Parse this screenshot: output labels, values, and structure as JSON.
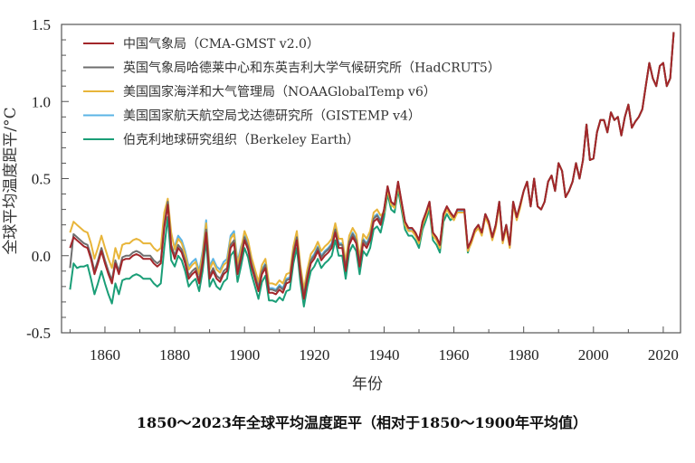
{
  "chart_data": {
    "type": "line",
    "title": "1850～2023年全球平均温度距平（相对于1850～1900年平均值）",
    "xlabel": "年份",
    "ylabel": "全球平均温度距平/°C",
    "xlim": [
      1850,
      2023
    ],
    "ylim": [
      -0.5,
      1.5
    ],
    "xticks": [
      "1860",
      "1880",
      "1900",
      "1920",
      "1940",
      "1960",
      "1980",
      "2000",
      "2020"
    ],
    "yticks": [
      "-0.5",
      "0.0",
      "0.5",
      "1.0",
      "1.5"
    ],
    "grid": false,
    "legend_position": "top-left",
    "x_start": 1850,
    "series": [
      {
        "name": "中国气象局（CMA-GMST v2.0）",
        "color": "#a3262a",
        "values": [
          0.05,
          0.12,
          0.1,
          0.08,
          0.06,
          0.05,
          -0.02,
          -0.12,
          -0.05,
          0.03,
          -0.05,
          -0.12,
          -0.18,
          -0.05,
          -0.12,
          -0.03,
          -0.02,
          -0.02,
          0.0,
          0.01,
          0.0,
          -0.02,
          -0.02,
          -0.02,
          -0.05,
          -0.07,
          -0.05,
          0.18,
          0.33,
          0.05,
          -0.02,
          0.05,
          0.02,
          -0.05,
          -0.15,
          -0.12,
          -0.1,
          -0.18,
          -0.05,
          0.15,
          -0.15,
          -0.1,
          -0.15,
          -0.17,
          -0.12,
          -0.1,
          0.05,
          0.08,
          -0.12,
          -0.02,
          0.1,
          0.04,
          -0.07,
          -0.15,
          -0.23,
          -0.12,
          -0.08,
          -0.24,
          -0.24,
          -0.25,
          -0.22,
          -0.24,
          -0.18,
          -0.17,
          0.0,
          0.1,
          -0.12,
          -0.28,
          -0.15,
          -0.05,
          -0.02,
          0.03,
          -0.03,
          0.0,
          0.02,
          0.05,
          0.15,
          0.05,
          0.05,
          -0.1,
          0.07,
          0.12,
          0.08,
          -0.07,
          0.08,
          0.05,
          0.1,
          0.22,
          0.24,
          0.2,
          0.3,
          0.45,
          0.35,
          0.33,
          0.48,
          0.35,
          0.22,
          0.18,
          0.18,
          0.15,
          0.1,
          0.22,
          0.28,
          0.35,
          0.15,
          0.12,
          0.07,
          0.27,
          0.32,
          0.28,
          0.25,
          0.3,
          0.3,
          0.3,
          0.05,
          0.1,
          0.17,
          0.2,
          0.15,
          0.27,
          0.22,
          0.12,
          0.2,
          0.35,
          0.1,
          0.2,
          0.07,
          0.35,
          0.25,
          0.33,
          0.42,
          0.48,
          0.32,
          0.5,
          0.32,
          0.3,
          0.35,
          0.48,
          0.52,
          0.42,
          0.6,
          0.55,
          0.38,
          0.42,
          0.48,
          0.6,
          0.5,
          0.62,
          0.85,
          0.62,
          0.63,
          0.8,
          0.88,
          0.88,
          0.8,
          0.93,
          0.88,
          0.9,
          0.78,
          0.9,
          0.98,
          0.83,
          0.87,
          0.9,
          0.95,
          1.1,
          1.25,
          1.15,
          1.1,
          1.23,
          1.25,
          1.1,
          1.15,
          1.45
        ]
      },
      {
        "name": "英国气象局哈德莱中心和东英吉利大学气候研究所（HadCRUT5）",
        "color": "#6e6e6e",
        "values": [
          -0.08,
          0.14,
          0.12,
          0.1,
          0.08,
          0.07,
          0.0,
          -0.1,
          -0.03,
          0.05,
          -0.03,
          -0.1,
          -0.16,
          -0.03,
          -0.1,
          -0.01,
          0.0,
          0.0,
          0.02,
          0.03,
          0.02,
          0.0,
          0.0,
          0.0,
          -0.03,
          -0.05,
          -0.03,
          0.2,
          0.35,
          0.07,
          0.0,
          0.07,
          0.04,
          -0.03,
          -0.13,
          -0.1,
          -0.08,
          -0.16,
          -0.03,
          0.17,
          -0.13,
          -0.08,
          -0.13,
          -0.15,
          -0.1,
          -0.08,
          0.07,
          0.1,
          -0.1,
          0.0,
          0.12,
          0.06,
          -0.05,
          -0.13,
          -0.21,
          -0.1,
          -0.06,
          -0.22,
          -0.22,
          -0.23,
          -0.2,
          -0.22,
          -0.16,
          -0.15,
          0.02,
          0.12,
          -0.1,
          -0.26,
          -0.13,
          -0.03,
          0.0,
          0.05,
          -0.01,
          0.02,
          0.04,
          0.07,
          0.17,
          0.07,
          0.07,
          -0.08,
          0.09,
          0.14,
          0.1,
          -0.05,
          0.1,
          0.07,
          0.12,
          0.24,
          0.26,
          0.22,
          0.3,
          0.45,
          0.35,
          0.33,
          0.48,
          0.35,
          0.22,
          0.18,
          0.18,
          0.15,
          0.1,
          0.22,
          0.28,
          0.35,
          0.15,
          0.12,
          0.07,
          0.27,
          0.32,
          0.28,
          0.25,
          0.3,
          0.3,
          0.3,
          0.05,
          0.1,
          0.17,
          0.2,
          0.15,
          0.27,
          0.22,
          0.12,
          0.2,
          0.35,
          0.1,
          0.2,
          0.07,
          0.35,
          0.25,
          0.33,
          0.42,
          0.48,
          0.32,
          0.5,
          0.32,
          0.3,
          0.35,
          0.48,
          0.52,
          0.42,
          0.6,
          0.55,
          0.38,
          0.42,
          0.48,
          0.6,
          0.5,
          0.62,
          0.85,
          0.62,
          0.63,
          0.8,
          0.88,
          0.88,
          0.8,
          0.93,
          0.88,
          0.9,
          0.78,
          0.9,
          0.98,
          0.83,
          0.87,
          0.9,
          0.95,
          1.1,
          1.25,
          1.15,
          1.1,
          1.23,
          1.25,
          1.1,
          1.15,
          1.45
        ]
      },
      {
        "name": "美国国家海洋和大气管理局（NOAAGlobalTemp v6）",
        "color": "#e8b53a",
        "values": [
          0.15,
          0.22,
          0.2,
          0.18,
          0.16,
          0.15,
          0.08,
          -0.02,
          0.05,
          0.13,
          0.05,
          -0.02,
          -0.08,
          0.05,
          -0.02,
          0.07,
          0.08,
          0.08,
          0.1,
          0.11,
          0.1,
          0.08,
          0.08,
          0.08,
          0.05,
          0.03,
          0.05,
          0.28,
          0.37,
          0.15,
          0.04,
          0.11,
          0.08,
          0.01,
          -0.09,
          -0.06,
          -0.04,
          -0.12,
          0.01,
          0.21,
          -0.09,
          -0.04,
          -0.09,
          -0.11,
          -0.06,
          -0.04,
          0.11,
          0.14,
          -0.06,
          0.04,
          0.16,
          0.1,
          -0.01,
          -0.09,
          -0.17,
          -0.06,
          -0.02,
          -0.18,
          -0.18,
          -0.19,
          -0.16,
          -0.18,
          -0.12,
          -0.11,
          0.06,
          0.16,
          -0.06,
          -0.22,
          -0.09,
          0.01,
          0.04,
          0.09,
          0.03,
          0.06,
          0.08,
          0.11,
          0.21,
          0.11,
          0.11,
          -0.04,
          0.13,
          0.18,
          0.14,
          -0.01,
          0.14,
          0.11,
          0.16,
          0.28,
          0.3,
          0.26,
          0.28,
          0.43,
          0.33,
          0.31,
          0.46,
          0.33,
          0.2,
          0.16,
          0.16,
          0.13,
          0.08,
          0.2,
          0.26,
          0.33,
          0.13,
          0.1,
          0.05,
          0.25,
          0.3,
          0.26,
          0.23,
          0.28,
          0.28,
          0.28,
          0.03,
          0.08,
          0.15,
          0.18,
          0.13,
          0.25,
          0.2,
          0.1,
          0.18,
          0.33,
          0.08,
          0.18,
          0.05,
          0.33,
          0.23,
          0.31,
          0.42,
          0.48,
          0.32,
          0.5,
          0.32,
          0.3,
          0.35,
          0.48,
          0.52,
          0.42,
          0.6,
          0.55,
          0.38,
          0.42,
          0.48,
          0.6,
          0.5,
          0.62,
          0.85,
          0.62,
          0.63,
          0.8,
          0.88,
          0.88,
          0.8,
          0.93,
          0.88,
          0.9,
          0.78,
          0.9,
          0.98,
          0.83,
          0.87,
          0.9,
          0.95,
          1.1,
          1.25,
          1.15,
          1.1,
          1.23,
          1.25,
          1.1,
          1.15,
          1.45
        ]
      },
      {
        "name": "美国国家航天航空局戈达德研究所（GISTEMP v4）",
        "color": "#5bb4e5",
        "values": [
          null,
          null,
          null,
          null,
          null,
          null,
          null,
          null,
          null,
          null,
          null,
          null,
          null,
          null,
          null,
          null,
          null,
          null,
          null,
          null,
          null,
          null,
          null,
          null,
          null,
          null,
          null,
          null,
          null,
          null,
          0.06,
          0.13,
          0.1,
          0.03,
          -0.07,
          -0.04,
          -0.02,
          -0.1,
          0.03,
          0.23,
          -0.07,
          -0.02,
          -0.07,
          -0.09,
          -0.04,
          -0.02,
          0.13,
          0.16,
          -0.04,
          0.06,
          0.13,
          0.07,
          -0.04,
          -0.12,
          -0.2,
          -0.09,
          -0.05,
          -0.21,
          -0.21,
          -0.22,
          -0.19,
          -0.21,
          -0.15,
          -0.14,
          0.03,
          0.13,
          -0.09,
          -0.25,
          -0.12,
          -0.02,
          0.01,
          0.06,
          0.0,
          0.03,
          0.05,
          0.08,
          0.18,
          0.08,
          0.08,
          -0.07,
          0.1,
          0.15,
          0.11,
          -0.04,
          0.11,
          0.08,
          0.13,
          0.25,
          0.27,
          0.23,
          0.29,
          0.44,
          0.34,
          0.32,
          0.47,
          0.34,
          0.21,
          0.17,
          0.17,
          0.14,
          0.09,
          0.21,
          0.27,
          0.34,
          0.14,
          0.11,
          0.06,
          0.26,
          0.31,
          0.27,
          0.24,
          0.29,
          0.29,
          0.29,
          0.04,
          0.09,
          0.16,
          0.19,
          0.14,
          0.26,
          0.21,
          0.11,
          0.19,
          0.34,
          0.09,
          0.19,
          0.06,
          0.34,
          0.24,
          0.32,
          0.42,
          0.48,
          0.32,
          0.5,
          0.32,
          0.3,
          0.35,
          0.48,
          0.52,
          0.42,
          0.6,
          0.55,
          0.38,
          0.42,
          0.48,
          0.6,
          0.5,
          0.62,
          0.85,
          0.62,
          0.63,
          0.8,
          0.88,
          0.88,
          0.8,
          0.93,
          0.88,
          0.9,
          0.78,
          0.9,
          0.98,
          0.83,
          0.87,
          0.9,
          0.95,
          1.1,
          1.25,
          1.15,
          1.1,
          1.23,
          1.25,
          1.1,
          1.15,
          1.45
        ]
      },
      {
        "name": "伯克利地球研究组织（Berkeley Earth）",
        "color": "#1a9e77",
        "values": [
          -0.22,
          -0.05,
          -0.08,
          -0.07,
          -0.07,
          -0.06,
          -0.15,
          -0.25,
          -0.18,
          -0.1,
          -0.18,
          -0.25,
          -0.31,
          -0.18,
          -0.25,
          -0.16,
          -0.15,
          -0.15,
          -0.13,
          -0.12,
          -0.13,
          -0.15,
          -0.15,
          -0.15,
          -0.18,
          -0.2,
          -0.18,
          0.05,
          0.25,
          -0.03,
          -0.07,
          0.0,
          -0.03,
          -0.1,
          -0.2,
          -0.17,
          -0.15,
          -0.23,
          -0.1,
          0.1,
          -0.2,
          -0.15,
          -0.2,
          -0.22,
          -0.17,
          -0.15,
          0.0,
          0.03,
          -0.17,
          -0.07,
          0.05,
          -0.01,
          -0.12,
          -0.2,
          -0.28,
          -0.17,
          -0.13,
          -0.29,
          -0.29,
          -0.3,
          -0.27,
          -0.29,
          -0.23,
          -0.22,
          -0.05,
          0.05,
          -0.17,
          -0.33,
          -0.2,
          -0.1,
          -0.07,
          -0.02,
          -0.08,
          -0.05,
          -0.03,
          0.0,
          0.1,
          0.0,
          0.0,
          -0.15,
          0.02,
          0.07,
          0.03,
          -0.12,
          0.03,
          0.0,
          0.05,
          0.17,
          0.19,
          0.15,
          0.25,
          0.4,
          0.3,
          0.28,
          0.43,
          0.3,
          0.17,
          0.13,
          0.13,
          0.1,
          0.05,
          0.17,
          0.23,
          0.3,
          0.1,
          0.07,
          0.02,
          0.22,
          0.27,
          0.23,
          0.25,
          0.3,
          0.3,
          0.3,
          0.02,
          0.1,
          0.17,
          0.2,
          0.15,
          0.27,
          0.22,
          0.12,
          0.2,
          0.35,
          0.1,
          0.2,
          0.07,
          0.35,
          0.25,
          0.33,
          0.42,
          0.48,
          0.32,
          0.5,
          0.32,
          0.3,
          0.35,
          0.48,
          0.52,
          0.42,
          0.6,
          0.55,
          0.38,
          0.42,
          0.48,
          0.6,
          0.5,
          0.62,
          0.85,
          0.62,
          0.63,
          0.8,
          0.88,
          0.88,
          0.8,
          0.93,
          0.88,
          0.9,
          0.78,
          0.9,
          0.98,
          0.83,
          0.87,
          0.9,
          0.95,
          1.1,
          1.25,
          1.15,
          1.1,
          1.23,
          1.25,
          1.1,
          1.15,
          1.45
        ]
      }
    ]
  }
}
